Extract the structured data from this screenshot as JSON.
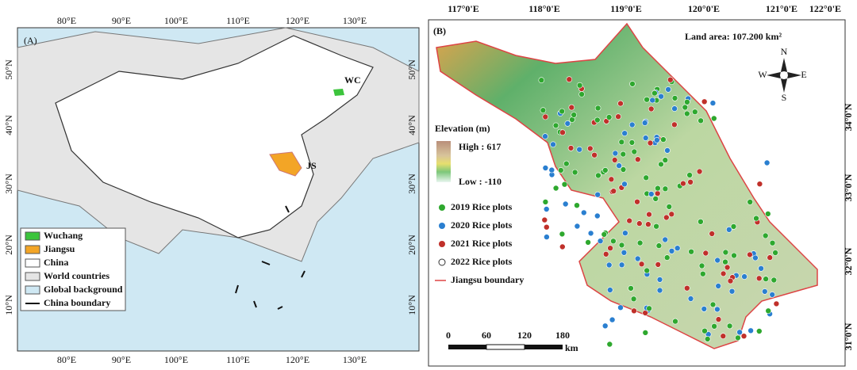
{
  "panel_a": {
    "label": "(A)",
    "top_ticks": [
      "80°E",
      "90°E",
      "100°E",
      "110°E",
      "120°E",
      "130°E"
    ],
    "bottom_ticks": [
      "80°E",
      "90°E",
      "100°E",
      "110°E",
      "120°E",
      "130°E"
    ],
    "left_ticks": [
      "50°N",
      "40°N",
      "30°N",
      "20°N",
      "10°N"
    ],
    "right_ticks": [
      "50°N",
      "40°N",
      "30°N",
      "20°N",
      "10°N"
    ],
    "places": [
      "WC",
      "JS"
    ],
    "legend": [
      "Wuchang",
      "Jiangsu",
      "China",
      "World countries",
      "Global background",
      "China boundary"
    ]
  },
  "panel_b": {
    "label": "(B)",
    "land_area": "Land area: 107.200 km²",
    "top_ticks": [
      "117°0'E",
      "118°0'E",
      "119°0'E",
      "120°0'E",
      "121°0'E",
      "122°0'E"
    ],
    "right_ticks": [
      "34°0'N",
      "33°0'N",
      "32°0'N",
      "31°0'N"
    ],
    "compass": [
      "N",
      "S",
      "E",
      "W"
    ],
    "elevation_title": "Elevation (m)",
    "elevation_high": "High : 617",
    "elevation_low": "Low : -110",
    "legend": [
      "2019 Rice plots",
      "2020 Rice plots",
      "2021 Rice plots",
      "2022 Rice plots",
      "Jiangsu boundary"
    ],
    "scale": [
      "0",
      "60",
      "120",
      "180",
      "km"
    ]
  }
}
